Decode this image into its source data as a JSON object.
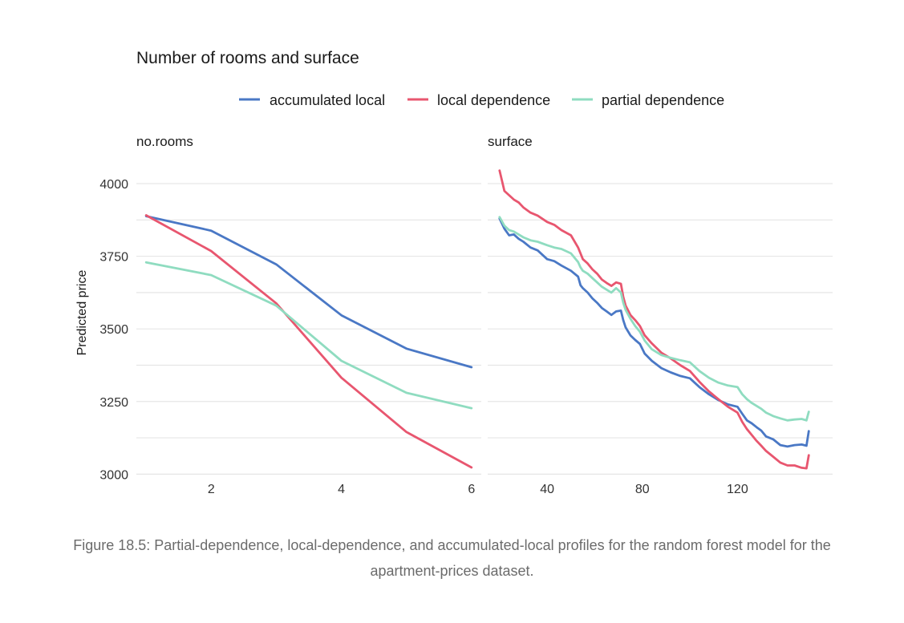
{
  "chart_data": {
    "type": "line",
    "title": "Number of rooms and surface",
    "ylabel": "Predicted price",
    "ylim": [
      2990,
      4080
    ],
    "y_ticks": [
      3000,
      3250,
      3500,
      3750,
      4000
    ],
    "legend": {
      "position": "top",
      "items": [
        {
          "name": "accumulated local",
          "color": "#4a78c5"
        },
        {
          "name": "local dependence",
          "color": "#e8566f"
        },
        {
          "name": "partial dependence",
          "color": "#8fdcc0"
        }
      ]
    },
    "panels": [
      {
        "name": "no.rooms",
        "xlim": [
          0.85,
          6.15
        ],
        "x_ticks": [
          2,
          4,
          6
        ],
        "series": [
          {
            "name": "accumulated local",
            "x": [
              1,
              2,
              3,
              4,
              5,
              6
            ],
            "y": [
              3888,
              3838,
              3722,
              3547,
              3432,
              3368
            ]
          },
          {
            "name": "local dependence",
            "x": [
              1,
              2,
              3,
              4,
              5,
              6
            ],
            "y": [
              3891,
              3768,
              3588,
              3332,
              3145,
              3023
            ]
          },
          {
            "name": "partial dependence",
            "x": [
              1,
              2,
              3,
              4,
              5,
              6
            ],
            "y": [
              3729,
              3685,
              3580,
              3390,
              3280,
              3227
            ]
          }
        ]
      },
      {
        "name": "surface",
        "xlim": [
          15,
          160
        ],
        "x_ticks": [
          40,
          80,
          120
        ],
        "series": [
          {
            "name": "accumulated local",
            "x": [
              20,
              22,
              24,
              26,
              28,
              30,
              33,
              36,
              40,
              43,
              46,
              50,
              53,
              54,
              55,
              57,
              59,
              61,
              63,
              65,
              67,
              69,
              71,
              72,
              73,
              75,
              77,
              79,
              81,
              84,
              88,
              92,
              96,
              100,
              104,
              108,
              112,
              116,
              120,
              122,
              124,
              126,
              128,
              130,
              132,
              135,
              138,
              141,
              144,
              147,
              149,
              150
            ],
            "y": [
              3880,
              3845,
              3822,
              3825,
              3810,
              3800,
              3780,
              3770,
              3740,
              3733,
              3718,
              3700,
              3680,
              3650,
              3640,
              3625,
              3605,
              3590,
              3572,
              3560,
              3548,
              3560,
              3563,
              3530,
              3505,
              3478,
              3462,
              3448,
              3415,
              3390,
              3365,
              3350,
              3338,
              3330,
              3300,
              3275,
              3255,
              3240,
              3232,
              3208,
              3185,
              3175,
              3162,
              3150,
              3130,
              3120,
              3100,
              3095,
              3100,
              3102,
              3098,
              3148
            ]
          },
          {
            "name": "local dependence",
            "x": [
              20,
              22,
              24,
              26,
              28,
              30,
              33,
              36,
              40,
              43,
              46,
              50,
              53,
              54,
              55,
              57,
              59,
              61,
              63,
              65,
              67,
              69,
              71,
              72,
              73,
              75,
              77,
              79,
              81,
              84,
              88,
              92,
              96,
              100,
              104,
              108,
              112,
              116,
              120,
              122,
              124,
              126,
              128,
              130,
              132,
              135,
              138,
              141,
              144,
              147,
              149,
              150
            ],
            "y": [
              4045,
              3975,
              3960,
              3945,
              3935,
              3918,
              3900,
              3890,
              3868,
              3858,
              3840,
              3822,
              3780,
              3760,
              3740,
              3725,
              3705,
              3690,
              3670,
              3658,
              3648,
              3660,
              3655,
              3610,
              3580,
              3548,
              3530,
              3510,
              3478,
              3450,
              3418,
              3398,
              3375,
              3355,
              3318,
              3285,
              3258,
              3232,
              3212,
              3180,
              3155,
              3135,
              3115,
              3098,
              3080,
              3060,
              3040,
              3030,
              3030,
              3022,
              3020,
              3065
            ]
          },
          {
            "name": "partial dependence",
            "x": [
              20,
              22,
              24,
              26,
              28,
              30,
              33,
              36,
              40,
              43,
              46,
              50,
              53,
              54,
              55,
              57,
              59,
              61,
              63,
              65,
              67,
              69,
              71,
              72,
              73,
              75,
              77,
              79,
              81,
              84,
              88,
              92,
              96,
              100,
              104,
              108,
              112,
              116,
              120,
              122,
              124,
              126,
              128,
              130,
              132,
              135,
              138,
              141,
              144,
              147,
              149,
              150
            ],
            "y": [
              3885,
              3855,
              3840,
              3835,
              3825,
              3815,
              3805,
              3800,
              3788,
              3780,
              3775,
              3760,
              3730,
              3712,
              3700,
              3690,
              3675,
              3660,
              3645,
              3635,
              3625,
              3640,
              3625,
              3590,
              3565,
              3535,
              3510,
              3490,
              3460,
              3430,
              3410,
              3400,
              3392,
              3385,
              3355,
              3332,
              3315,
              3305,
              3300,
              3275,
              3258,
              3245,
              3235,
              3225,
              3212,
              3200,
              3192,
              3185,
              3188,
              3190,
              3185,
              3215
            ]
          }
        ]
      }
    ]
  },
  "caption": "Figure 18.5: Partial-dependence, local-dependence, and accumulated-local profiles for the random forest model for the apartment-prices dataset."
}
